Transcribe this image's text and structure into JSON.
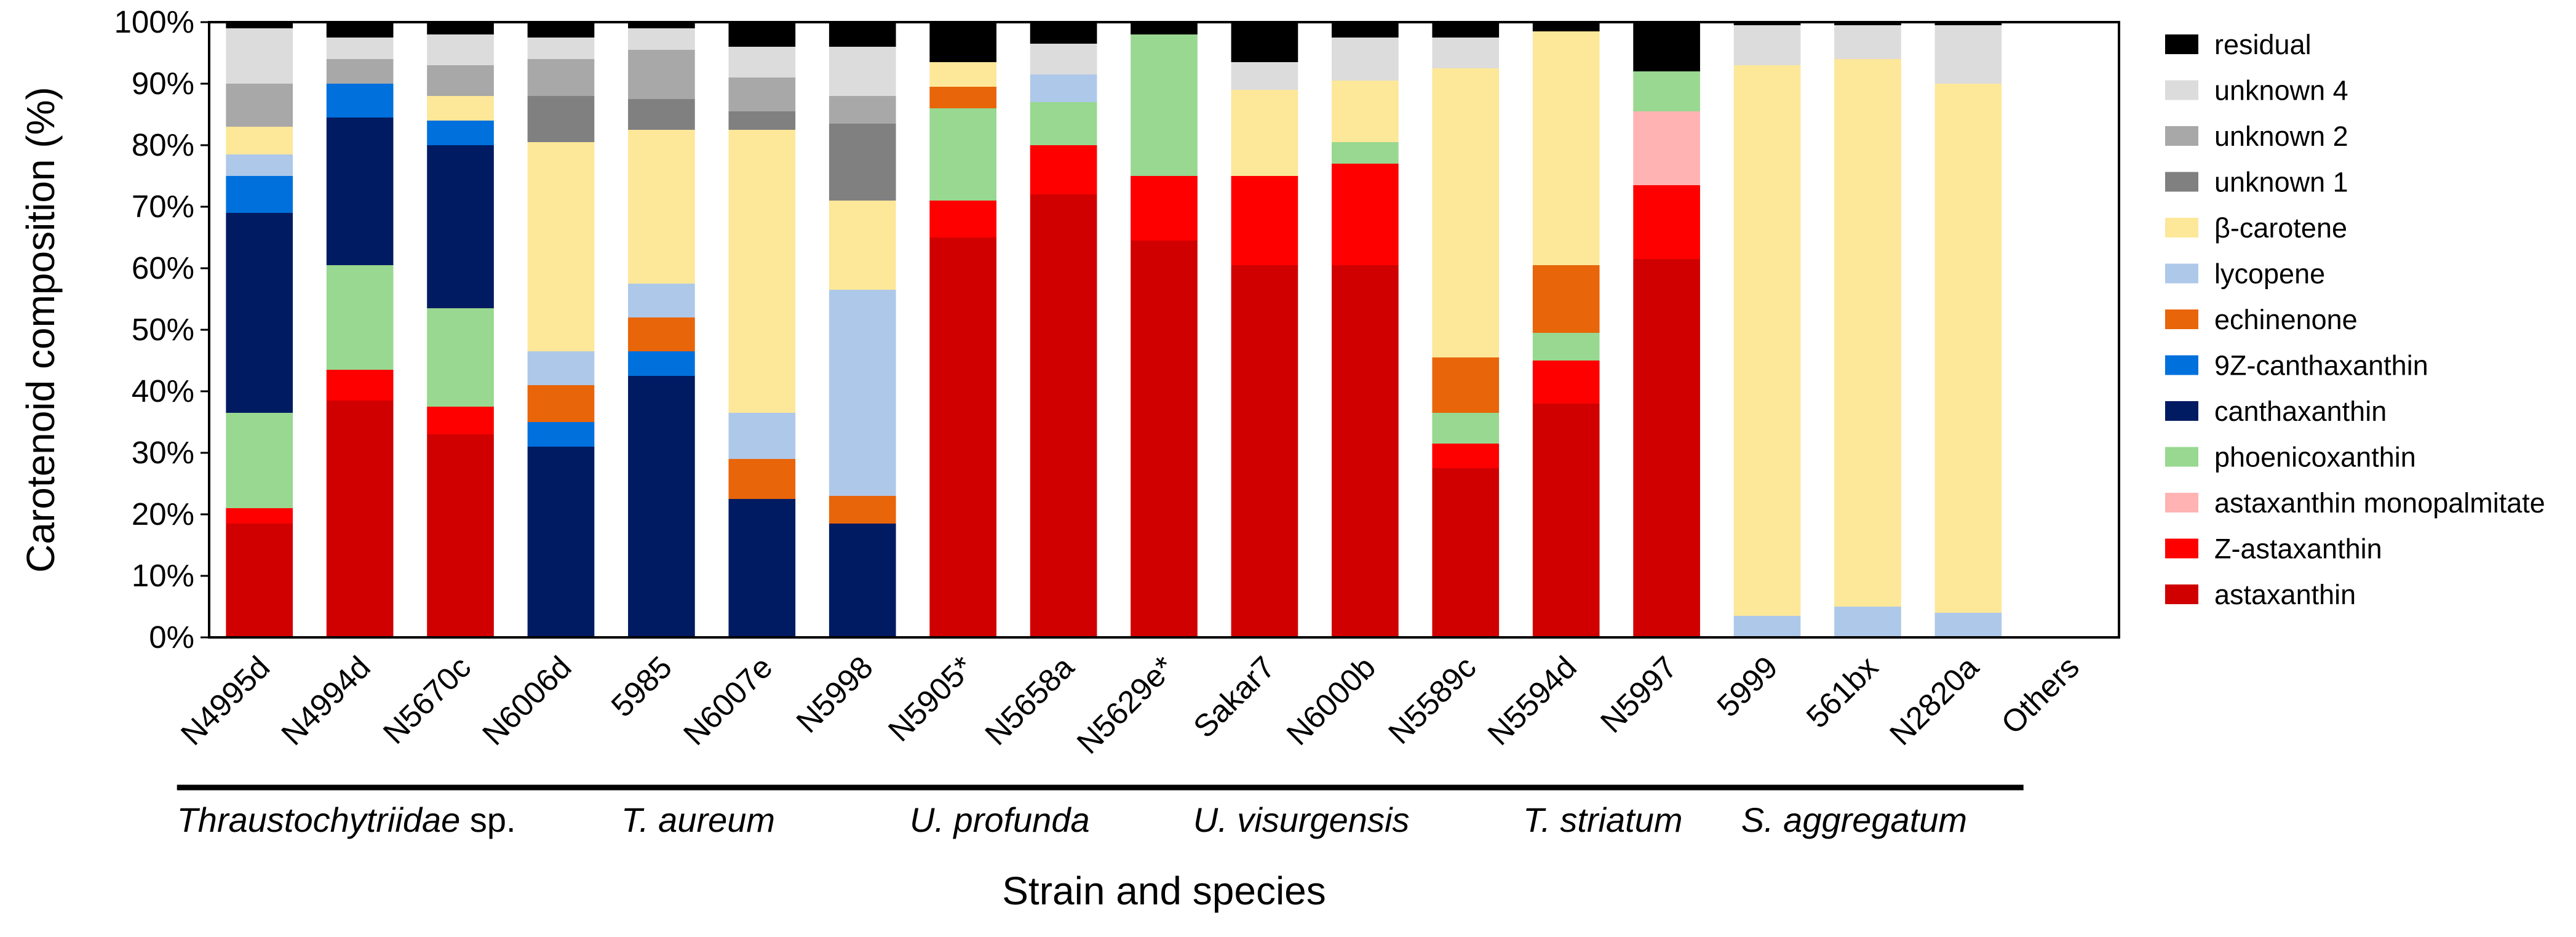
{
  "chart_data": {
    "type": "bar",
    "stacked": true,
    "title": "",
    "xlabel": "Strain and species",
    "ylabel": "Carotenoid composition (%)",
    "ylim": [
      0,
      100
    ],
    "yticks": [
      "0%",
      "10%",
      "20%",
      "30%",
      "40%",
      "50%",
      "60%",
      "70%",
      "80%",
      "90%",
      "100%"
    ],
    "categories": [
      "N4995d",
      "N4994d",
      "N5670c",
      "N6006d",
      "5985",
      "N6007e",
      "N5998",
      "N5905*",
      "N5658a",
      "N5629e*",
      "Sakar7",
      "N6000b",
      "N5589c",
      "N5594d",
      "N5997",
      "5999",
      "561bx",
      "N2820a",
      "Others"
    ],
    "species_groups": [
      {
        "label": "Thraustochytriidae",
        "suffix": " sp.",
        "start": 0,
        "end": 2
      },
      {
        "label": "T. aureum",
        "suffix": "",
        "start": 3,
        "end": 6
      },
      {
        "label": "U. profunda",
        "suffix": "",
        "start": 7,
        "end": 8
      },
      {
        "label": "U. visurgensis",
        "suffix": "",
        "start": 9,
        "end": 12
      },
      {
        "label": "T. striatum",
        "suffix": "",
        "start": 13,
        "end": 14
      },
      {
        "label": "S. aggregatum",
        "suffix": "",
        "start": 15,
        "end": 17
      }
    ],
    "legend_position": "right",
    "series": [
      {
        "name": "astaxanthin",
        "color": "#d00000",
        "values": [
          18.5,
          38.5,
          33,
          0,
          0,
          0,
          0,
          65,
          72,
          64.5,
          60.5,
          60.5,
          27.5,
          38,
          61.5,
          0,
          0,
          0,
          0
        ]
      },
      {
        "name": "Z-astaxanthin",
        "color": "#ff0000",
        "values": [
          2.5,
          5,
          4.5,
          0,
          0,
          0,
          0,
          6,
          8,
          10.5,
          14.5,
          16.5,
          4,
          7,
          12,
          0,
          0,
          0,
          0
        ]
      },
      {
        "name": "astaxanthin monopalmitate",
        "color": "#ffb3b3",
        "values": [
          0,
          0,
          0,
          0,
          0,
          0,
          0,
          0,
          0,
          0,
          0,
          0,
          0,
          0,
          12,
          0,
          0,
          0,
          0
        ]
      },
      {
        "name": "phoenicoxanthin",
        "color": "#98d890",
        "values": [
          15.5,
          17,
          16,
          0,
          0,
          0,
          0,
          15,
          7,
          23,
          0,
          3.5,
          5,
          4.5,
          6.5,
          0,
          0,
          0,
          0
        ]
      },
      {
        "name": "canthaxanthin",
        "color": "#001b62",
        "values": [
          32.5,
          24,
          26.5,
          31,
          42.5,
          22.5,
          18.5,
          0,
          0,
          0,
          0,
          0,
          0,
          0,
          0,
          0,
          0,
          0,
          0
        ]
      },
      {
        "name": "9Z-canthaxanthin",
        "color": "#0070dd",
        "values": [
          6,
          5.5,
          4,
          4,
          4,
          0,
          0,
          0,
          0,
          0,
          0,
          0,
          0,
          0,
          0,
          0,
          0,
          0,
          0
        ]
      },
      {
        "name": "echinenone",
        "color": "#e8650a",
        "values": [
          0,
          0,
          0,
          6,
          5.5,
          6.5,
          4.5,
          3.5,
          0,
          0,
          0,
          0,
          9,
          11,
          0,
          0,
          0,
          0,
          0
        ]
      },
      {
        "name": "lycopene",
        "color": "#aec8e9",
        "values": [
          3.5,
          0,
          0,
          5.5,
          5.5,
          7.5,
          33.5,
          0,
          4.5,
          0,
          0,
          0,
          0,
          0,
          0,
          3.5,
          5,
          4,
          0
        ]
      },
      {
        "name": "β-carotene",
        "color": "#fde799",
        "values": [
          4.5,
          0,
          4,
          34,
          25,
          46,
          14.5,
          4,
          0,
          0,
          14,
          10,
          47,
          38,
          0,
          89.5,
          89,
          86,
          0
        ]
      },
      {
        "name": "unknown 1",
        "color": "#808080",
        "values": [
          0,
          0,
          0,
          7.5,
          5,
          3,
          12.5,
          0,
          0,
          0,
          0,
          0,
          0,
          0,
          0,
          0,
          0,
          0,
          0
        ]
      },
      {
        "name": "unknown 2",
        "color": "#a8a8a8",
        "values": [
          7,
          4,
          5,
          6,
          8,
          5.5,
          4.5,
          0,
          0,
          0,
          0,
          0,
          0,
          0,
          0,
          0,
          0,
          0,
          0
        ]
      },
      {
        "name": "unknown 4",
        "color": "#dcdcdc",
        "values": [
          9,
          3.5,
          5,
          3.5,
          3.5,
          5,
          8,
          0,
          5,
          0,
          4.5,
          7,
          5,
          0,
          0,
          6.5,
          5.5,
          9.5,
          0
        ]
      },
      {
        "name": "residual",
        "color": "#000000",
        "values": [
          1,
          2.5,
          2,
          2.5,
          1,
          4,
          4,
          6.5,
          3.5,
          2,
          6.5,
          2.5,
          2.5,
          1.5,
          8,
          0.5,
          0.5,
          0.5,
          0
        ]
      }
    ]
  }
}
